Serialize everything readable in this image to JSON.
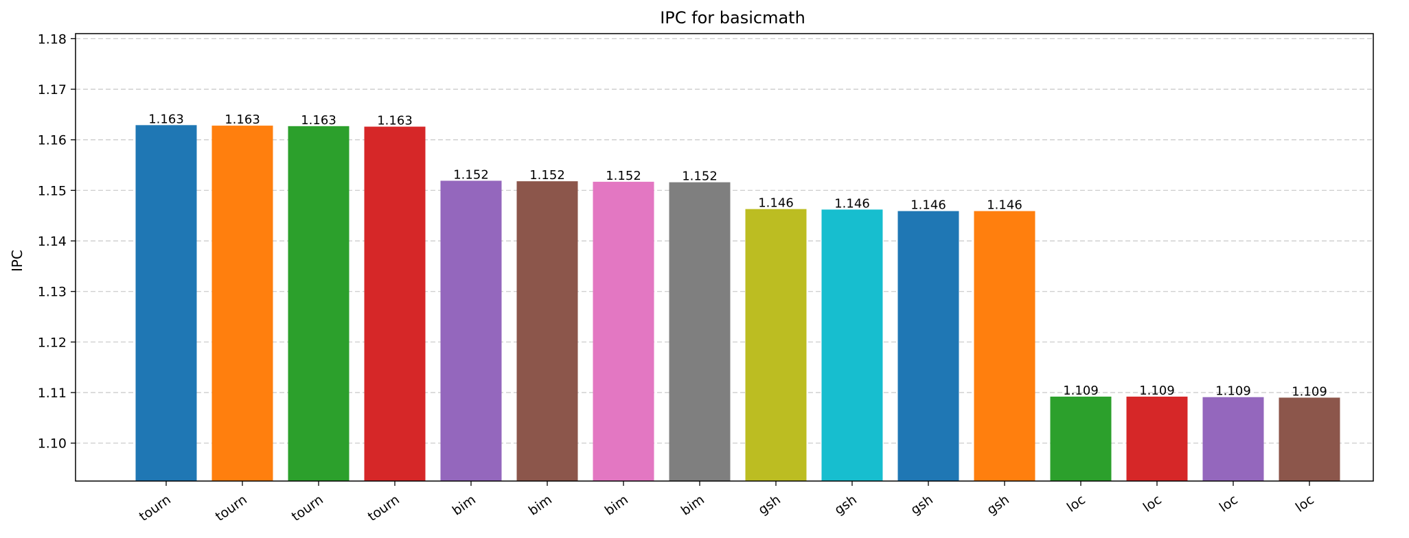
{
  "chart_data": {
    "type": "bar",
    "title": "IPC for basicmath",
    "xlabel": "",
    "ylabel": "IPC",
    "ylim": [
      1.0925,
      1.181
    ],
    "yticks": [
      1.1,
      1.11,
      1.12,
      1.13,
      1.14,
      1.15,
      1.16,
      1.17,
      1.18
    ],
    "grid": "horizontal-dashed",
    "categories": [
      "tourn",
      "tourn",
      "tourn",
      "tourn",
      "bim",
      "bim",
      "bim",
      "bim",
      "gsh",
      "gsh",
      "gsh",
      "gsh",
      "loc",
      "loc",
      "loc",
      "loc"
    ],
    "values": [
      1.1629,
      1.1628,
      1.1627,
      1.1626,
      1.1519,
      1.1518,
      1.1517,
      1.1516,
      1.1463,
      1.1462,
      1.1459,
      1.1459,
      1.1092,
      1.1092,
      1.1091,
      1.109
    ],
    "data_labels": [
      "1.163",
      "1.163",
      "1.163",
      "1.163",
      "1.152",
      "1.152",
      "1.152",
      "1.152",
      "1.146",
      "1.146",
      "1.146",
      "1.146",
      "1.109",
      "1.109",
      "1.109",
      "1.109"
    ],
    "colors": [
      "#1f77b4",
      "#ff7f0e",
      "#2ca02c",
      "#d62728",
      "#9467bd",
      "#8c564b",
      "#e377c2",
      "#7f7f7f",
      "#bcbd22",
      "#17becf",
      "#1f77b4",
      "#ff7f0e",
      "#2ca02c",
      "#d62728",
      "#9467bd",
      "#8c564b"
    ]
  }
}
